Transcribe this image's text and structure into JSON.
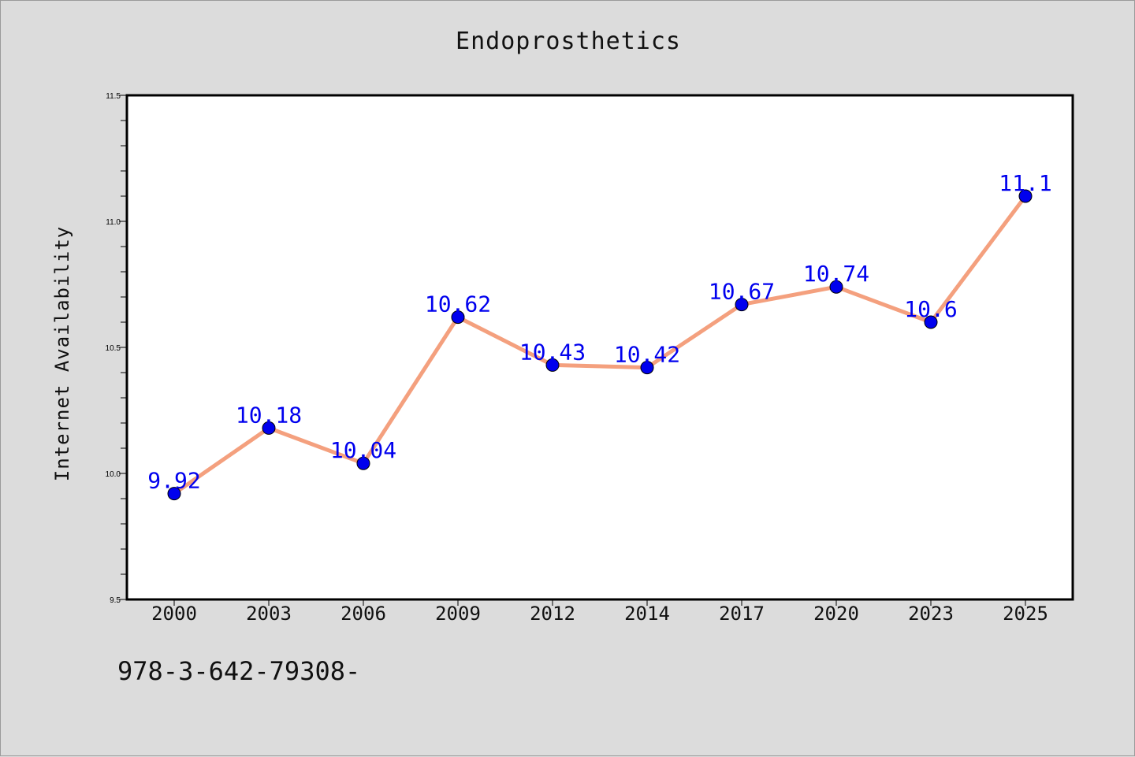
{
  "chart_data": {
    "type": "line",
    "title": "Endoprosthetics",
    "xlabel": "",
    "ylabel": "Internet Availability",
    "categories": [
      "2000",
      "2003",
      "2006",
      "2009",
      "2012",
      "2014",
      "2017",
      "2020",
      "2023",
      "2025"
    ],
    "series": [
      {
        "values": [
          9.92,
          10.18,
          10.04,
          10.62,
          10.43,
          10.42,
          10.67,
          10.74,
          10.6,
          11.1
        ],
        "data_labels": [
          "9.92",
          "10.18",
          "10.04",
          "10.62",
          "10.43",
          "10.42",
          "10.67",
          "10.74",
          "10.6",
          "11.1"
        ],
        "line_color": "#f4a07e",
        "marker_color": "#0000ee",
        "label_color": "#0000ee"
      }
    ],
    "ylim": [
      9.5,
      11.5
    ],
    "yticks": [
      "9.5",
      "10.0",
      "10.5",
      "11.0",
      "11.5"
    ],
    "grid": false,
    "legend": "none"
  },
  "footer": {
    "text": "978-3-642-79308-"
  },
  "colors": {
    "background": "#dcdcdc",
    "plot_background": "#ffffff",
    "axis": "#000000"
  }
}
